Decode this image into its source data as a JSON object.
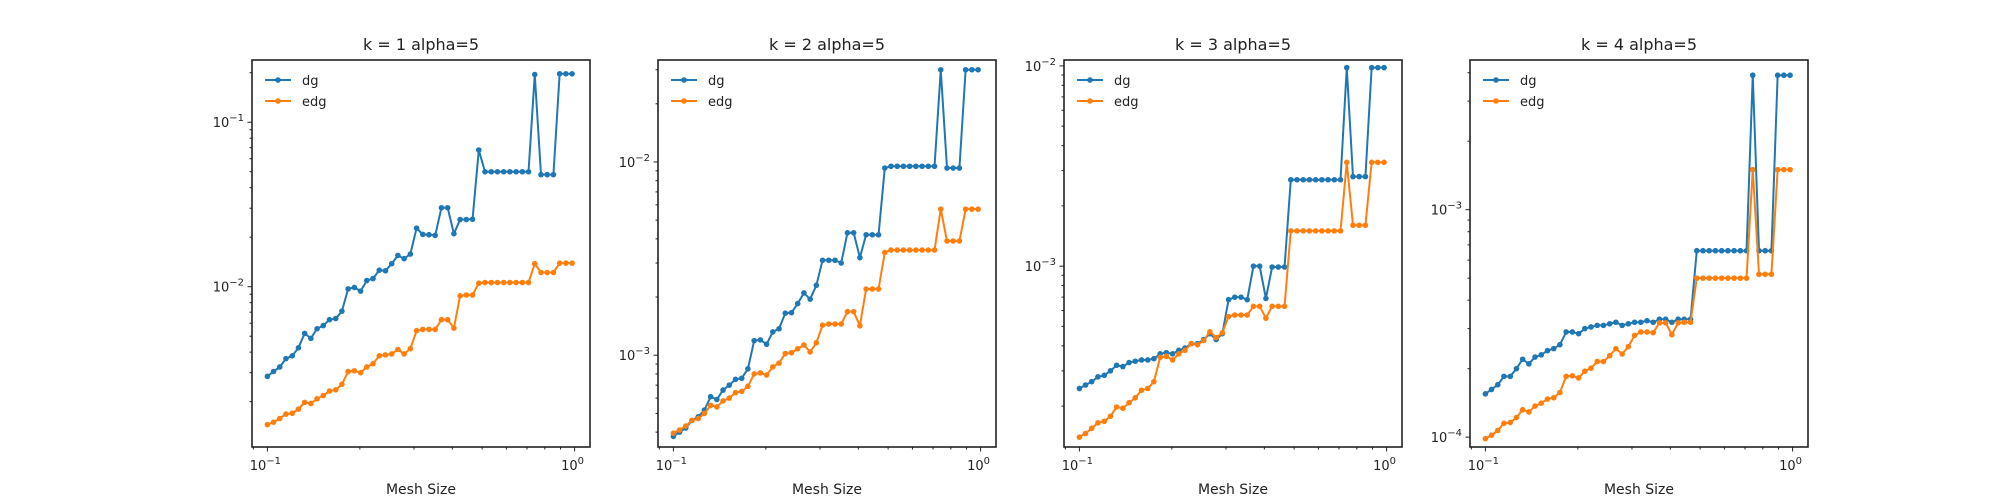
{
  "figure": {
    "background": "#ffffff"
  },
  "series_colors": {
    "dg": "#1f77b4",
    "edg": "#ff7f0e"
  },
  "chart_data": [
    {
      "type": "line",
      "title": "k = 1 alpha=5",
      "xlabel": "Mesh Size",
      "ylabel": "",
      "xscale": "log",
      "yscale": "log",
      "xlim": [
        0.0891,
        1.1225
      ],
      "ylim": [
        0.00106,
        0.239
      ],
      "xticks": [
        {
          "value": 0.1,
          "label": "10",
          "exp": "−1"
        },
        {
          "value": 1.0,
          "label": "10",
          "exp": "0"
        }
      ],
      "yticks": [
        {
          "value": 0.01,
          "label": "10",
          "exp": "−2"
        },
        {
          "value": 0.1,
          "label": "10",
          "exp": "−1"
        }
      ],
      "legend": "top-left",
      "grid": false,
      "x": [
        0.1,
        0.1047,
        0.1097,
        0.1149,
        0.1205,
        0.1262,
        0.1322,
        0.1385,
        0.1451,
        0.152,
        0.1593,
        0.1669,
        0.1748,
        0.1832,
        0.1919,
        0.2011,
        0.2107,
        0.2207,
        0.2313,
        0.2423,
        0.2539,
        0.266,
        0.2787,
        0.292,
        0.3059,
        0.3205,
        0.3358,
        0.3518,
        0.3686,
        0.3862,
        0.4047,
        0.424,
        0.4442,
        0.4654,
        0.4877,
        0.5109,
        0.5353,
        0.5609,
        0.5877,
        0.6157,
        0.6451,
        0.6759,
        0.7081,
        0.7419,
        0.7774,
        0.8145,
        0.8533,
        0.8941,
        0.9368,
        0.9815
      ],
      "series": [
        {
          "name": "dg",
          "values": [
            0.00285,
            0.00305,
            0.00325,
            0.00365,
            0.0038,
            0.00425,
            0.0052,
            0.00485,
            0.00555,
            0.0058,
            0.0063,
            0.0064,
            0.0071,
            0.0097,
            0.0099,
            0.0094,
            0.0109,
            0.0112,
            0.0126,
            0.0125,
            0.0138,
            0.0155,
            0.0148,
            0.0158,
            0.0227,
            0.0208,
            0.0207,
            0.0205,
            0.0302,
            0.0302,
            0.021,
            0.0256,
            0.0256,
            0.0257,
            0.0678,
            0.05,
            0.05,
            0.05,
            0.05,
            0.05,
            0.05,
            0.05,
            0.05,
            0.195,
            0.048,
            0.048,
            0.048,
            0.197,
            0.197,
            0.197
          ]
        },
        {
          "name": "edg",
          "values": [
            0.00145,
            0.0015,
            0.00158,
            0.00168,
            0.0017,
            0.0018,
            0.00198,
            0.00195,
            0.00208,
            0.00218,
            0.00232,
            0.00236,
            0.00255,
            0.00305,
            0.00308,
            0.003,
            0.00325,
            0.0034,
            0.0038,
            0.00385,
            0.0039,
            0.00415,
            0.0039,
            0.0042,
            0.0054,
            0.0055,
            0.0055,
            0.0055,
            0.0063,
            0.0063,
            0.0056,
            0.0088,
            0.0089,
            0.0089,
            0.0105,
            0.0106,
            0.0106,
            0.0106,
            0.0106,
            0.0106,
            0.0106,
            0.0106,
            0.0106,
            0.0138,
            0.0122,
            0.0122,
            0.0122,
            0.0139,
            0.0139,
            0.0139
          ]
        }
      ]
    },
    {
      "type": "line",
      "title": "k = 2 alpha=5",
      "xlabel": "Mesh Size",
      "ylabel": "",
      "xscale": "log",
      "yscale": "log",
      "xlim": [
        0.0891,
        1.1225
      ],
      "ylim": [
        0.000335,
        0.0337
      ],
      "xticks": [
        {
          "value": 0.1,
          "label": "10",
          "exp": "−1"
        },
        {
          "value": 1.0,
          "label": "10",
          "exp": "0"
        }
      ],
      "yticks": [
        {
          "value": 0.001,
          "label": "10",
          "exp": "−3"
        },
        {
          "value": 0.01,
          "label": "10",
          "exp": "−2"
        }
      ],
      "legend": "top-left",
      "grid": false,
      "x": [
        0.1,
        0.1047,
        0.1097,
        0.1149,
        0.1205,
        0.1262,
        0.1322,
        0.1385,
        0.1451,
        0.152,
        0.1593,
        0.1669,
        0.1748,
        0.1832,
        0.1919,
        0.2011,
        0.2107,
        0.2207,
        0.2313,
        0.2423,
        0.2539,
        0.266,
        0.2787,
        0.292,
        0.3059,
        0.3205,
        0.3358,
        0.3518,
        0.3686,
        0.3862,
        0.4047,
        0.424,
        0.4442,
        0.4654,
        0.4877,
        0.5109,
        0.5353,
        0.5609,
        0.5877,
        0.6157,
        0.6451,
        0.6759,
        0.7081,
        0.7419,
        0.7774,
        0.8145,
        0.8533,
        0.8941,
        0.9368,
        0.9815
      ],
      "series": [
        {
          "name": "dg",
          "values": [
            0.00038,
            0.0004,
            0.00042,
            0.00046,
            0.00048,
            0.00052,
            0.00061,
            0.00059,
            0.00066,
            0.0007,
            0.00075,
            0.00076,
            0.00085,
            0.00119,
            0.0012,
            0.00114,
            0.00132,
            0.00137,
            0.00165,
            0.00166,
            0.00185,
            0.0021,
            0.00195,
            0.0023,
            0.0031,
            0.0031,
            0.0031,
            0.003,
            0.0043,
            0.0043,
            0.0032,
            0.0042,
            0.0042,
            0.0042,
            0.0093,
            0.0095,
            0.0095,
            0.0095,
            0.0095,
            0.0095,
            0.0095,
            0.0095,
            0.0095,
            0.03,
            0.0093,
            0.0093,
            0.0093,
            0.03,
            0.03,
            0.03
          ]
        },
        {
          "name": "edg",
          "values": [
            0.000395,
            0.00041,
            0.00043,
            0.00046,
            0.00047,
            0.0005,
            0.00055,
            0.00054,
            0.00058,
            0.0006,
            0.00064,
            0.00065,
            0.00069,
            0.0008,
            0.00081,
            0.00079,
            0.00087,
            0.00091,
            0.00102,
            0.00103,
            0.00108,
            0.00113,
            0.00104,
            0.00116,
            0.00143,
            0.00145,
            0.00145,
            0.00145,
            0.00168,
            0.00168,
            0.00142,
            0.0022,
            0.0022,
            0.0022,
            0.0034,
            0.0035,
            0.0035,
            0.0035,
            0.0035,
            0.0035,
            0.0035,
            0.0035,
            0.0035,
            0.0057,
            0.0039,
            0.0039,
            0.0039,
            0.0057,
            0.0057,
            0.0057
          ]
        }
      ]
    },
    {
      "type": "line",
      "title": "k = 3 alpha=5",
      "xlabel": "Mesh Size",
      "ylabel": "",
      "xscale": "log",
      "yscale": "log",
      "xlim": [
        0.0891,
        1.1225
      ],
      "ylim": [
        0.000125,
        0.0107
      ],
      "xticks": [
        {
          "value": 0.1,
          "label": "10",
          "exp": "−1"
        },
        {
          "value": 1.0,
          "label": "10",
          "exp": "0"
        }
      ],
      "yticks": [
        {
          "value": 0.001,
          "label": "10",
          "exp": "−3"
        },
        {
          "value": 0.01,
          "label": "10",
          "exp": "−2"
        }
      ],
      "legend": "top-left",
      "grid": false,
      "x": [
        0.1,
        0.1047,
        0.1097,
        0.1149,
        0.1205,
        0.1262,
        0.1322,
        0.1385,
        0.1451,
        0.152,
        0.1593,
        0.1669,
        0.1748,
        0.1832,
        0.1919,
        0.2011,
        0.2107,
        0.2207,
        0.2313,
        0.2423,
        0.2539,
        0.266,
        0.2787,
        0.292,
        0.3059,
        0.3205,
        0.3358,
        0.3518,
        0.3686,
        0.3862,
        0.4047,
        0.424,
        0.4442,
        0.4654,
        0.4877,
        0.5109,
        0.5353,
        0.5609,
        0.5877,
        0.6157,
        0.6451,
        0.6759,
        0.7081,
        0.7419,
        0.7774,
        0.8145,
        0.8533,
        0.8941,
        0.9368,
        0.9815
      ],
      "series": [
        {
          "name": "dg",
          "values": [
            0.000245,
            0.000255,
            0.000265,
            0.00028,
            0.000285,
            0.0003,
            0.00032,
            0.000315,
            0.00033,
            0.000335,
            0.00034,
            0.00034,
            0.000345,
            0.000365,
            0.00037,
            0.000365,
            0.00038,
            0.00039,
            0.00041,
            0.00041,
            0.00043,
            0.00046,
            0.00043,
            0.00046,
            0.00068,
            0.0007,
            0.0007,
            0.00068,
            0.001,
            0.001,
            0.00069,
            0.00099,
            0.00099,
            0.00099,
            0.0027,
            0.0027,
            0.0027,
            0.0027,
            0.0027,
            0.0027,
            0.0027,
            0.0027,
            0.0027,
            0.0098,
            0.0028,
            0.0028,
            0.0028,
            0.0098,
            0.0098,
            0.0098
          ]
        },
        {
          "name": "edg",
          "values": [
            0.00014,
            0.000146,
            0.000155,
            0.000165,
            0.000168,
            0.000178,
            0.000198,
            0.000195,
            0.000208,
            0.00022,
            0.00024,
            0.000245,
            0.000265,
            0.00035,
            0.000355,
            0.00034,
            0.000365,
            0.00038,
            0.00041,
            0.000405,
            0.000425,
            0.00047,
            0.00044,
            0.000465,
            0.00056,
            0.00057,
            0.00057,
            0.00057,
            0.00063,
            0.00063,
            0.00055,
            0.00063,
            0.00063,
            0.00063,
            0.0015,
            0.0015,
            0.0015,
            0.0015,
            0.0015,
            0.0015,
            0.0015,
            0.0015,
            0.0015,
            0.0033,
            0.0016,
            0.0016,
            0.0016,
            0.0033,
            0.0033,
            0.0033
          ]
        }
      ]
    },
    {
      "type": "line",
      "title": "k = 4 alpha=5",
      "xlabel": "Mesh Size",
      "ylabel": "",
      "xscale": "log",
      "yscale": "log",
      "xlim": [
        0.0891,
        1.1225
      ],
      "ylim": [
        9.05e-05,
        0.00455
      ],
      "xticks": [
        {
          "value": 0.1,
          "label": "10",
          "exp": "−1"
        },
        {
          "value": 1.0,
          "label": "10",
          "exp": "0"
        }
      ],
      "yticks": [
        {
          "value": 0.0001,
          "label": "10",
          "exp": "−4"
        },
        {
          "value": 0.001,
          "label": "10",
          "exp": "−3"
        }
      ],
      "legend": "top-left",
      "grid": false,
      "x": [
        0.1,
        0.1047,
        0.1097,
        0.1149,
        0.1205,
        0.1262,
        0.1322,
        0.1385,
        0.1451,
        0.152,
        0.1593,
        0.1669,
        0.1748,
        0.1832,
        0.1919,
        0.2011,
        0.2107,
        0.2207,
        0.2313,
        0.2423,
        0.2539,
        0.266,
        0.2787,
        0.292,
        0.3059,
        0.3205,
        0.3358,
        0.3518,
        0.3686,
        0.3862,
        0.4047,
        0.424,
        0.4442,
        0.4654,
        0.4877,
        0.5109,
        0.5353,
        0.5609,
        0.5877,
        0.6157,
        0.6451,
        0.6759,
        0.7081,
        0.7419,
        0.7774,
        0.8145,
        0.8533,
        0.8941,
        0.9368,
        0.9815
      ],
      "series": [
        {
          "name": "dg",
          "values": [
            0.000155,
            0.000162,
            0.00017,
            0.000185,
            0.000185,
            0.0002,
            0.00022,
            0.00021,
            0.000225,
            0.00023,
            0.00024,
            0.000245,
            0.000255,
            0.00029,
            0.00029,
            0.000285,
            0.0003,
            0.000305,
            0.00031,
            0.00031,
            0.000315,
            0.00032,
            0.00031,
            0.000315,
            0.00032,
            0.00032,
            0.000325,
            0.00032,
            0.00033,
            0.00033,
            0.00032,
            0.00033,
            0.00033,
            0.00033,
            0.00066,
            0.00066,
            0.00066,
            0.00066,
            0.00066,
            0.00066,
            0.00066,
            0.00066,
            0.00066,
            0.0039,
            0.00066,
            0.00066,
            0.00066,
            0.0039,
            0.0039,
            0.0039
          ]
        },
        {
          "name": "edg",
          "values": [
            9.85e-05,
            0.000102,
            0.000107,
            0.000115,
            0.000116,
            0.000122,
            0.000132,
            0.000129,
            0.000137,
            0.000141,
            0.000147,
            0.000149,
            0.000157,
            0.000185,
            0.000186,
            0.000182,
            0.000195,
            0.000201,
            0.000215,
            0.000215,
            0.000228,
            0.000245,
            0.000232,
            0.00025,
            0.00028,
            0.00029,
            0.00029,
            0.000288,
            0.000318,
            0.000318,
            0.000282,
            0.000318,
            0.00032,
            0.00032,
            0.0005,
            0.0005,
            0.0005,
            0.0005,
            0.0005,
            0.0005,
            0.0005,
            0.0005,
            0.0005,
            0.0015,
            0.00052,
            0.00052,
            0.00052,
            0.0015,
            0.0015,
            0.0015
          ]
        }
      ]
    }
  ]
}
